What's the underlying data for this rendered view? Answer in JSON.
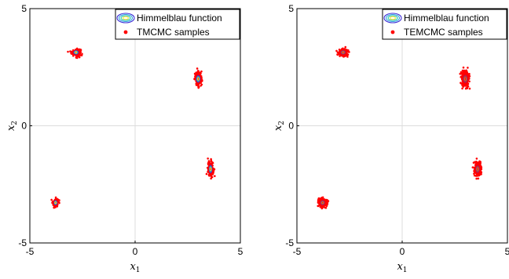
{
  "chart_data": [
    {
      "type": "scatter",
      "title": "",
      "xlabel": "x",
      "xlabel_sub": "1",
      "ylabel": "x",
      "ylabel_sub": "2",
      "xlim": [
        -5,
        5
      ],
      "ylim": [
        -5,
        5
      ],
      "xticks": [
        "-5",
        "0",
        "5"
      ],
      "yticks": [
        "-5",
        "0",
        "5"
      ],
      "grid": "center-lines",
      "legend_position": "top-right",
      "legend": [
        {
          "label": "Himmelblau function",
          "kind": "contour"
        },
        {
          "label": "TMCMC samples",
          "kind": "marker"
        }
      ],
      "marker_color": "#ff0000",
      "contour_colors": [
        "#3b2bd6",
        "#2f9fe0",
        "#27c9a8",
        "#f6e23a"
      ],
      "clusters": [
        {
          "center": [
            -2.805,
            3.131
          ],
          "spread": [
            0.2,
            0.14
          ],
          "n": 140
        },
        {
          "center": [
            3.0,
            2.0
          ],
          "spread": [
            0.16,
            0.27
          ],
          "n": 140
        },
        {
          "center": [
            3.584,
            -1.848
          ],
          "spread": [
            0.12,
            0.3
          ],
          "n": 140
        },
        {
          "center": [
            -3.779,
            -3.283
          ],
          "spread": [
            0.12,
            0.17
          ],
          "n": 120
        }
      ]
    },
    {
      "type": "scatter",
      "title": "",
      "xlabel": "x",
      "xlabel_sub": "1",
      "ylabel": "x",
      "ylabel_sub": "2",
      "xlim": [
        -5,
        5
      ],
      "ylim": [
        -5,
        5
      ],
      "xticks": [
        "-5",
        "0",
        "5"
      ],
      "yticks": [
        "-5",
        "0",
        "5"
      ],
      "grid": "center-lines",
      "legend_position": "top-right",
      "legend": [
        {
          "label": "Himmelblau function",
          "kind": "contour"
        },
        {
          "label": "TEMCMC samples",
          "kind": "marker"
        }
      ],
      "marker_color": "#ff0000",
      "contour_colors": [
        "#3b2bd6",
        "#2f9fe0",
        "#27c9a8",
        "#f6e23a"
      ],
      "clusters": [
        {
          "center": [
            -2.805,
            3.131
          ],
          "spread": [
            0.2,
            0.14
          ],
          "n": 220
        },
        {
          "center": [
            3.0,
            2.0
          ],
          "spread": [
            0.16,
            0.3
          ],
          "n": 260
        },
        {
          "center": [
            3.584,
            -1.848
          ],
          "spread": [
            0.14,
            0.28
          ],
          "n": 220
        },
        {
          "center": [
            -3.779,
            -3.283
          ],
          "spread": [
            0.17,
            0.17
          ],
          "n": 200
        }
      ]
    }
  ]
}
